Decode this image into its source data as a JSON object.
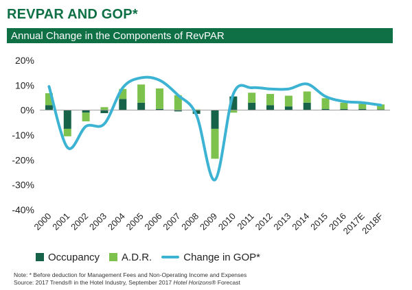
{
  "header": {
    "title": "REVPAR AND GOP*",
    "subtitle": "Annual Change in the Components of RevPAR"
  },
  "colors": {
    "brand_green": "#0f6f45",
    "occupancy": "#17634a",
    "adr": "#7dc24d",
    "gop": "#3cb3d3"
  },
  "legend": {
    "occupancy": "Occupancy",
    "adr": "A.D.R.",
    "gop": "Change in GOP*"
  },
  "notes": {
    "line1": "Note: * Before deduction for Management Fees and Non-Operating Income and Expenses",
    "line2_prefix": "Source: 2017 Trends® in the Hotel Industry, September 2017 ",
    "line2_italic": "Hotel Horizons",
    "line2_suffix": "® Forecast"
  },
  "chart_data": {
    "type": "bar",
    "stacked": true,
    "categories": [
      "2000",
      "2001",
      "2002",
      "2003",
      "2004",
      "2005",
      "2006",
      "2007",
      "2008",
      "2009",
      "2010",
      "2011",
      "2012",
      "2013",
      "2014",
      "2015",
      "2016",
      "2017E",
      "2018F"
    ],
    "series": [
      {
        "name": "Occupancy",
        "type": "bar",
        "values": [
          2.0,
          -7.5,
          -1.0,
          -1.2,
          4.5,
          3.0,
          0.5,
          -0.5,
          -1.5,
          -7.5,
          5.5,
          3.0,
          2.0,
          1.5,
          3.0,
          0.5,
          0.5,
          0.5,
          0.3
        ]
      },
      {
        "name": "A.D.R.",
        "type": "bar",
        "values": [
          4.8,
          -3.0,
          -3.5,
          1.2,
          4.0,
          7.3,
          8.2,
          6.0,
          0.3,
          -12.0,
          -1.0,
          4.0,
          4.5,
          4.3,
          4.5,
          4.3,
          2.5,
          2.0,
          2.0
        ]
      },
      {
        "name": "Change in GOP*",
        "type": "line",
        "values": [
          9.5,
          -15.0,
          -6.5,
          -5.5,
          9.0,
          13.0,
          12.0,
          6.0,
          -2.0,
          -28.0,
          6.5,
          9.0,
          8.5,
          8.5,
          10.5,
          5.5,
          3.5,
          3.0,
          2.0
        ]
      }
    ],
    "ylim": [
      -40,
      20
    ],
    "yticks": [
      "-40%",
      "-30%",
      "-20%",
      "-10%",
      "0%",
      "10%",
      "20%"
    ],
    "ytick_values": [
      -40,
      -30,
      -20,
      -10,
      0,
      10,
      20
    ],
    "grid": false,
    "legend_position": "bottom"
  }
}
